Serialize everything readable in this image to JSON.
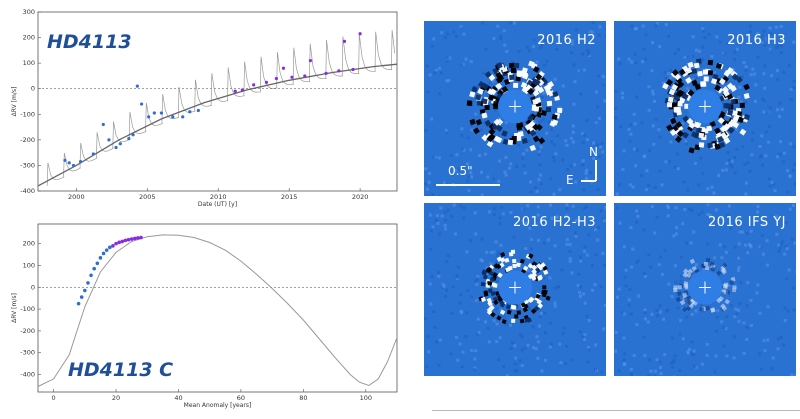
{
  "colors": {
    "accent_title": "#1f4f99",
    "series_blue": "#2f6fd1",
    "series_purple": "#8a2be2",
    "model": "#999999",
    "panel_bg": "#2a72d2"
  },
  "chart_data": [
    {
      "type": "line",
      "title": "HD4113",
      "xlabel": "Date (UT) [y]",
      "ylabel": "ΔRV [m/s]",
      "xlim": [
        1997.3,
        2022.6
      ],
      "ylim": [
        -400,
        300
      ],
      "xticks": [
        "2000",
        "2005",
        "2010",
        "2015",
        "2020"
      ],
      "yticks": [
        "-400",
        "-300",
        "-200",
        "-100",
        "0",
        "100",
        "200",
        "300"
      ],
      "grid": false,
      "zero_line": true,
      "series": [
        {
          "kind": "trend",
          "x": [
            1997.3,
            2000,
            2003,
            2006,
            2009,
            2012,
            2015,
            2018,
            2021,
            2022.6
          ],
          "values": [
            -380,
            -300,
            -200,
            -118,
            -55,
            -5,
            33,
            63,
            87,
            96
          ]
        },
        {
          "kind": "observations-blue",
          "x": [
            1999.2,
            1999.5,
            1999.8,
            2000.3,
            2001.2,
            2001.9,
            2002.3,
            2002.8,
            2003.1,
            2003.7,
            2004.0,
            2004.3,
            2004.6,
            2005.1,
            2005.5,
            2006.0,
            2006.8,
            2007.5,
            2008.0,
            2008.6
          ],
          "values": [
            -280,
            -290,
            -300,
            -285,
            -255,
            -140,
            -200,
            -230,
            -215,
            -195,
            -180,
            10,
            -60,
            -110,
            -95,
            -95,
            -110,
            -110,
            -90,
            -85
          ]
        },
        {
          "kind": "observations-purple",
          "x": [
            2011.2,
            2011.7,
            2012.5,
            2013.4,
            2014.1,
            2014.6,
            2015.2,
            2016.1,
            2016.5,
            2017.6,
            2018.5,
            2018.9,
            2019.5,
            2020.0
          ],
          "values": [
            -10,
            -5,
            15,
            25,
            40,
            80,
            45,
            50,
            110,
            60,
            70,
            185,
            75,
            215
          ]
        }
      ]
    },
    {
      "type": "line",
      "title": "HD4113 C",
      "xlabel": "Mean Anomaly [years]",
      "ylabel": "ΔRV [m/s]",
      "xlim": [
        -5,
        110
      ],
      "ylim": [
        -480,
        290
      ],
      "xticks": [
        "0",
        "20",
        "40",
        "60",
        "80",
        "100"
      ],
      "yticks": [
        "-400",
        "-300",
        "-200",
        "-100",
        "0",
        "100",
        "200"
      ],
      "grid": false,
      "zero_line": true,
      "series": [
        {
          "kind": "model",
          "x": [
            -5,
            0,
            5,
            10,
            15,
            20,
            25,
            30,
            35,
            40,
            45,
            50,
            55,
            60,
            65,
            70,
            75,
            80,
            85,
            90,
            95,
            98,
            101,
            104,
            107,
            110
          ],
          "values": [
            -455,
            -420,
            -310,
            -90,
            70,
            160,
            210,
            232,
            240,
            238,
            228,
            205,
            170,
            120,
            60,
            -5,
            -75,
            -150,
            -235,
            -320,
            -400,
            -435,
            -450,
            -420,
            -340,
            -230
          ]
        },
        {
          "kind": "observations-blue",
          "x": [
            8,
            9,
            10,
            11,
            12,
            13,
            14,
            15,
            16,
            17,
            18
          ],
          "values": [
            -75,
            -45,
            -15,
            20,
            55,
            85,
            110,
            135,
            155,
            170,
            183
          ]
        },
        {
          "kind": "observations-purple",
          "x": [
            19,
            20,
            21,
            22,
            23,
            24,
            25,
            26,
            27,
            28
          ],
          "values": [
            190,
            200,
            206,
            210,
            215,
            218,
            221,
            224,
            226,
            228
          ]
        }
      ]
    }
  ],
  "image_panels": [
    {
      "label": "2016 H2",
      "scale_bar": "0.5\"",
      "compass_n": "N",
      "compass_e": "E"
    },
    {
      "label": "2016 H3"
    },
    {
      "label": "2016 H2-H3"
    },
    {
      "label": "2016 IFS YJ"
    }
  ]
}
